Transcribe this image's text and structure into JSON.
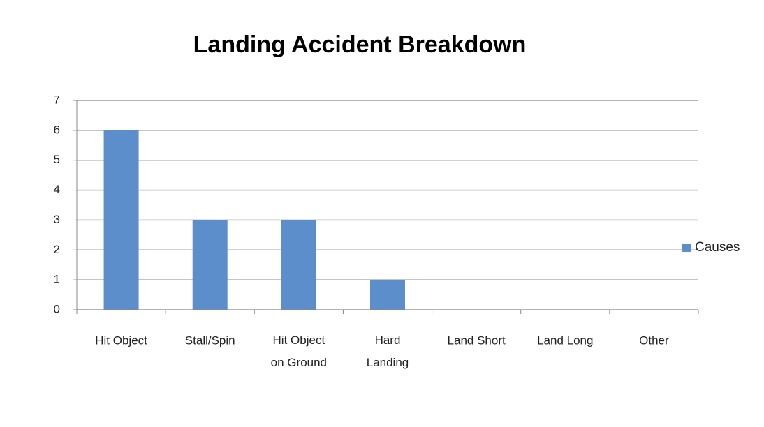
{
  "chart_data": {
    "type": "bar",
    "title": "Landing Accident Breakdown",
    "categories": [
      "Hit Object",
      "Stall/Spin",
      "Hit Object on Ground",
      "Hard Landing",
      "Land Short",
      "Land Long",
      "Other"
    ],
    "series": [
      {
        "name": "Causes",
        "color": "#5b8ecb",
        "values": [
          6,
          3,
          3,
          1,
          0,
          0,
          0
        ]
      }
    ],
    "ylim": [
      0,
      7
    ],
    "yticks": [
      0,
      1,
      2,
      3,
      4,
      5,
      6,
      7
    ],
    "grid": true,
    "legend": "right"
  }
}
